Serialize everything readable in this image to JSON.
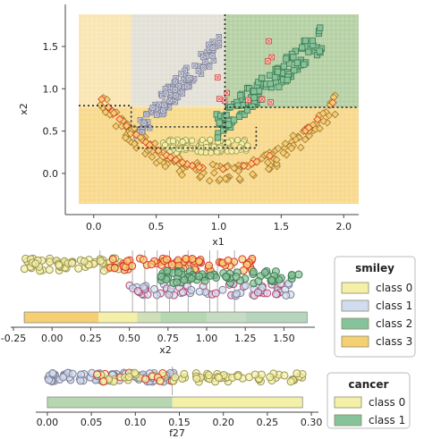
{
  "chart_data": [
    {
      "type": "scatter",
      "panel": "decision-map",
      "xlabel": "x1",
      "ylabel": "x2",
      "xlim": [
        -0.12,
        2.12
      ],
      "ylim": [
        -0.36,
        1.88
      ],
      "xticks": [
        "0.0",
        "0.5",
        "1.0",
        "1.5",
        "2.0"
      ],
      "xtick_values": [
        0,
        0.5,
        1.0,
        1.5,
        2.0
      ],
      "yticks": [
        "0.0",
        "0.5",
        "1.0",
        "1.5"
      ],
      "ytick_values": [
        0,
        0.5,
        1.0,
        1.5
      ],
      "grid": false,
      "regions": [
        {
          "class": "class 0",
          "x": [
            0.35,
            1.05
          ],
          "y": [
            0.3,
            0.78
          ]
        },
        {
          "class": "class 1",
          "x": [
            0.3,
            1.05
          ],
          "y": [
            0.8,
            1.88
          ]
        },
        {
          "class": "class 2",
          "x": [
            1.05,
            2.12
          ],
          "y": [
            0.78,
            1.88
          ]
        },
        {
          "class": "class 3",
          "x": [
            -0.12,
            2.12
          ],
          "y": [
            -0.36,
            0.78
          ]
        }
      ],
      "thresholds": {
        "vertical": [
          1.05,
          0.3,
          1.05
        ],
        "horizontal": [
          0.8,
          0.55,
          0.3,
          0.78
        ]
      },
      "series": [
        {
          "name": "class 0",
          "shape": "circle",
          "region": {
            "x": [
              0.35,
              1.3
            ],
            "y": [
              0.18,
              0.42
            ]
          }
        },
        {
          "name": "class 1",
          "shape": "x-square",
          "region": {
            "x": [
              0.3,
              1.05
            ],
            "y": [
              0.45,
              1.6
            ]
          }
        },
        {
          "name": "class 2",
          "shape": "square",
          "region": {
            "x": [
              0.95,
              1.95
            ],
            "y": [
              0.5,
              1.65
            ]
          }
        },
        {
          "name": "class 3",
          "shape": "diamond",
          "region": {
            "x": [
              0.0,
              2.0
            ],
            "y": [
              -0.1,
              0.95
            ]
          }
        }
      ]
    },
    {
      "type": "scatter",
      "panel": "feature-x2",
      "xlabel": "x2",
      "xlim": [
        -0.25,
        1.7
      ],
      "xticks": [
        "-0.25",
        "0.00",
        "0.25",
        "0.50",
        "0.75",
        "1.00",
        "1.25",
        "1.50"
      ],
      "xtick_values": [
        -0.25,
        0,
        0.25,
        0.5,
        0.75,
        1.0,
        1.25,
        1.5
      ],
      "split_lines": [
        0.31,
        0.52,
        0.6,
        0.68,
        0.76,
        0.88,
        1.02,
        1.07,
        1.18
      ],
      "colorbar_range": [
        -0.18,
        1.65
      ],
      "series": [
        {
          "name": "class 0",
          "range": [
            -0.18,
            0.45
          ]
        },
        {
          "name": "class 3",
          "range": [
            0.35,
            1.3
          ]
        },
        {
          "name": "class 1",
          "range": [
            0.5,
            1.6
          ]
        },
        {
          "name": "class 2",
          "range": [
            0.7,
            1.6
          ]
        }
      ]
    },
    {
      "type": "scatter",
      "panel": "feature-f27",
      "xlabel": "f27",
      "xlim": [
        -0.005,
        0.305
      ],
      "xticks": [
        "0.00",
        "0.05",
        "0.10",
        "0.15",
        "0.20",
        "0.25",
        "0.30"
      ],
      "xtick_values": [
        0,
        0.05,
        0.1,
        0.15,
        0.2,
        0.25,
        0.3
      ],
      "split_lines": [
        0.142
      ],
      "colorbar_range": [
        0.0,
        0.29
      ],
      "series": [
        {
          "name": "class 1",
          "range": [
            0.0,
            0.145
          ]
        },
        {
          "name": "class 0",
          "range": [
            0.05,
            0.29
          ]
        }
      ]
    }
  ],
  "legends": [
    {
      "title": "smiley",
      "items": [
        {
          "label": "class 0",
          "color": "#f5f0a8"
        },
        {
          "label": "class 1",
          "color": "#d2dcef"
        },
        {
          "label": "class 2",
          "color": "#86c29a"
        },
        {
          "label": "class 3",
          "color": "#f6cf72"
        }
      ]
    },
    {
      "title": "cancer",
      "items": [
        {
          "label": "class 0",
          "color": "#f5f0a8"
        },
        {
          "label": "class 1",
          "color": "#86c29a"
        }
      ]
    }
  ],
  "colors": {
    "class0": "#f5f0a8",
    "class1": "#d2dcef",
    "class2": "#86c29a",
    "class3": "#f6cf72",
    "misclassified": "#d9342b"
  }
}
